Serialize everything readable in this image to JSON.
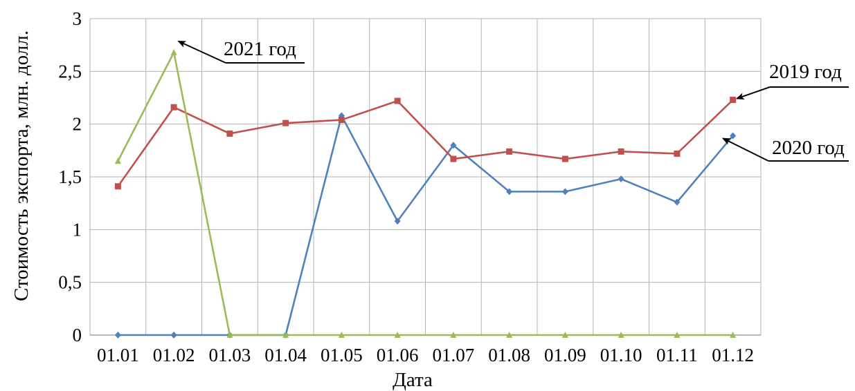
{
  "chart_data": {
    "type": "line",
    "xlabel": "Дата",
    "ylabel": "Стоимость экспорта, млн. долл.",
    "categories": [
      "01.01",
      "01.02",
      "01.03",
      "01.04",
      "01.05",
      "01.06",
      "01.07",
      "01.08",
      "01.09",
      "01.10",
      "01.11",
      "01.12"
    ],
    "y_ticks": [
      "0",
      "0,5",
      "1",
      "1,5",
      "2",
      "2,5",
      "3"
    ],
    "ylim": [
      0,
      3
    ],
    "grid": true,
    "legend": "none",
    "series": [
      {
        "name": "2019 год",
        "color": "#C0504D",
        "marker": "square",
        "values": [
          1.41,
          2.16,
          1.91,
          2.01,
          2.04,
          2.22,
          1.67,
          1.74,
          1.67,
          1.74,
          1.72,
          2.23
        ]
      },
      {
        "name": "2020 год",
        "color": "#4F81BD",
        "marker": "diamond",
        "values": [
          0,
          0,
          0,
          0,
          2.08,
          1.08,
          1.8,
          1.36,
          1.36,
          1.48,
          1.26,
          1.89
        ]
      },
      {
        "name": "2021 год",
        "color": "#9BBB59",
        "marker": "triangle",
        "values": [
          1.65,
          2.68,
          0,
          0,
          0,
          0,
          0,
          0,
          0,
          0,
          0,
          0
        ]
      }
    ],
    "annotations": [
      {
        "text": "2021 год",
        "series": 2,
        "point": 1
      },
      {
        "text": "2019 год",
        "series": 0,
        "point": 11
      },
      {
        "text": "2020 год",
        "series": 1,
        "point": 11
      }
    ]
  }
}
